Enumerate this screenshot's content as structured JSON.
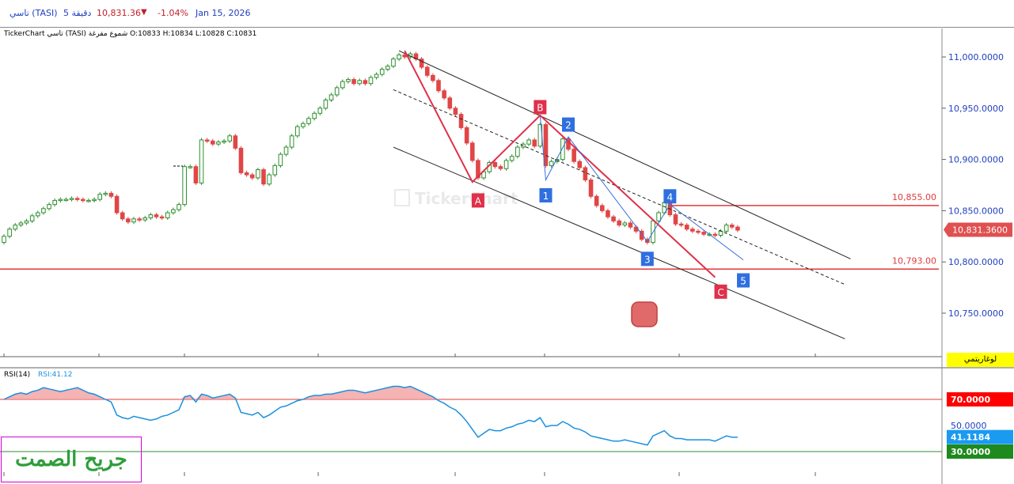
{
  "header": {
    "symbol": "تاسي (TASI)",
    "timeframe": "5 دقيقة",
    "price": "10,831.36",
    "change": "-1.04%",
    "date": "Jan 15, 2026"
  },
  "ohlc_line": "TickerChart تاسي (TASI) شموع مفرغة  O:10833  H:10834  L:10828  C:10831",
  "log_button": "لوغاريتمي",
  "watermark_text": "جريح الصمت",
  "colors": {
    "up": "#2f8f2f",
    "down": "#e04646",
    "rsi": "#1a8fe0",
    "accent": "#1f3fbf"
  },
  "chart_data": {
    "type": "candlestick",
    "ylim": [
      10720,
      11020
    ],
    "yticks": [
      {
        "value": 10750,
        "label": "10,750.0000"
      },
      {
        "value": 10800,
        "label": "10,800.0000"
      },
      {
        "value": 10850,
        "label": "10,850.0000"
      },
      {
        "value": 10900,
        "label": "10,900.0000"
      },
      {
        "value": 10950,
        "label": "10,950.0000"
      },
      {
        "value": 11000,
        "label": "11,000.0000"
      }
    ],
    "current_price": {
      "value": 10831.36,
      "label": "10,831.3600"
    },
    "levels": [
      {
        "value": 10855,
        "label": "10,855.00"
      },
      {
        "value": 10793,
        "label": "10,793.00"
      }
    ],
    "close": [
      10825,
      10832,
      10836,
      10838,
      10840,
      10845,
      10848,
      10852,
      10856,
      10860,
      10861,
      10861,
      10862,
      10861,
      10860,
      10860,
      10861,
      10866,
      10867,
      10864,
      10848,
      10842,
      10839,
      10842,
      10841,
      10843,
      10846,
      10844,
      10843,
      10848,
      10851,
      10856,
      10893,
      10893,
      10877,
      10919,
      10918,
      10915,
      10917,
      10918,
      10923,
      10911,
      10887,
      10885,
      10882,
      10890,
      10876,
      10885,
      10894,
      10905,
      10912,
      10923,
      10932,
      10935,
      10940,
      10945,
      10950,
      10958,
      10963,
      10970,
      10976,
      10978,
      10974,
      10977,
      10974,
      10980,
      10983,
      10988,
      10991,
      10998,
      11002,
      11000,
      11003,
      10998,
      10990,
      10982,
      10977,
      10967,
      10960,
      10950,
      10944,
      10931,
      10916,
      10899,
      10882,
      10888,
      10897,
      10893,
      10891,
      10899,
      10903,
      10912,
      10915,
      10919,
      10913,
      10934,
      10894,
      10898,
      10900,
      10920,
      10910,
      10898,
      10892,
      10880,
      10864,
      10855,
      10850,
      10844,
      10840,
      10836,
      10838,
      10834,
      10830,
      10822,
      10819,
      10840,
      10848,
      10858,
      10846,
      10837,
      10836,
      10832,
      10830,
      10829,
      10827,
      10827,
      10826,
      10830,
      10836,
      10834,
      10831
    ],
    "rsi": {
      "label": "RSI(14)",
      "value_label": "RSI:41.12",
      "ylim": [
        20,
        85
      ],
      "levels": [
        {
          "value": 70,
          "label": "70.0000"
        },
        {
          "value": 50,
          "label": "50.0000"
        },
        {
          "value": 30,
          "label": "30.0000"
        }
      ],
      "current": {
        "value": 41.12,
        "label": "41.1184"
      },
      "values": [
        70,
        72,
        74,
        75,
        74,
        76,
        77,
        79,
        78,
        77,
        76,
        77,
        78,
        79,
        77,
        75,
        74,
        72,
        70,
        68,
        58,
        56,
        55,
        57,
        56,
        55,
        54,
        55,
        57,
        58,
        60,
        62,
        72,
        73,
        68,
        74,
        73,
        71,
        72,
        73,
        74,
        71,
        60,
        59,
        58,
        60,
        56,
        58,
        61,
        64,
        65,
        67,
        69,
        70,
        72,
        73,
        73,
        74,
        74,
        75,
        76,
        77,
        77,
        76,
        75,
        76,
        77,
        78,
        79,
        80,
        80,
        79,
        80,
        78,
        76,
        74,
        72,
        69,
        67,
        64,
        62,
        58,
        53,
        47,
        41,
        44,
        47,
        46,
        46,
        48,
        49,
        51,
        52,
        54,
        53,
        56,
        49,
        50,
        50,
        53,
        51,
        48,
        47,
        45,
        42,
        41,
        40,
        39,
        38,
        38,
        39,
        38,
        37,
        36,
        35,
        42,
        44,
        46,
        42,
        40,
        40,
        39,
        39,
        39,
        39,
        39,
        38,
        40,
        42,
        41,
        41
      ]
    },
    "wave_labels": [
      "A",
      "B",
      "C",
      "1",
      "2",
      "3",
      "4",
      "5"
    ]
  }
}
